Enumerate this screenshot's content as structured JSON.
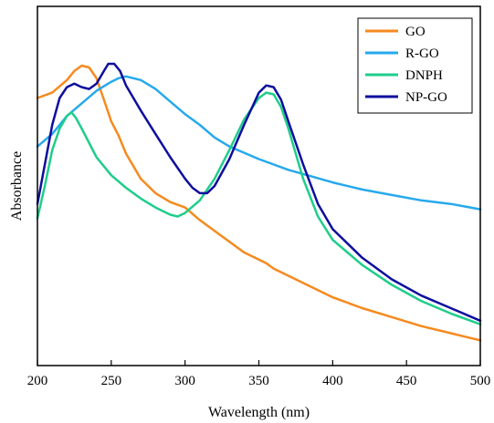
{
  "chart_data": {
    "type": "line",
    "title": "",
    "xlabel": "Wavelength (nm)",
    "ylabel": "Absorbance",
    "xlim": [
      200,
      500
    ],
    "ylim": [
      0,
      1.0
    ],
    "x_ticks": [
      200,
      250,
      300,
      350,
      400,
      450,
      500
    ],
    "x_tick_labels": [
      "200",
      "250",
      "300",
      "350",
      "400",
      "450",
      "500"
    ],
    "y_ticks_shown": false,
    "grid": false,
    "legend_position": "top-right",
    "series": [
      {
        "name": "GO",
        "color": "#f58a1f",
        "x": [
          200,
          210,
          220,
          225,
          230,
          235,
          240,
          245,
          250,
          255,
          260,
          270,
          280,
          290,
          300,
          310,
          320,
          330,
          340,
          350,
          355,
          360,
          370,
          380,
          390,
          400,
          420,
          440,
          460,
          480,
          500
        ],
        "y": [
          0.745,
          0.76,
          0.795,
          0.82,
          0.835,
          0.83,
          0.8,
          0.74,
          0.68,
          0.64,
          0.59,
          0.52,
          0.48,
          0.455,
          0.44,
          0.405,
          0.375,
          0.345,
          0.315,
          0.295,
          0.285,
          0.27,
          0.25,
          0.23,
          0.21,
          0.19,
          0.16,
          0.135,
          0.11,
          0.09,
          0.07
        ]
      },
      {
        "name": "R-GO",
        "color": "#27a9ec",
        "x": [
          200,
          210,
          220,
          230,
          240,
          250,
          255,
          260,
          265,
          270,
          280,
          290,
          300,
          310,
          320,
          330,
          350,
          370,
          400,
          420,
          440,
          460,
          480,
          500
        ],
        "y": [
          0.61,
          0.645,
          0.695,
          0.73,
          0.765,
          0.79,
          0.8,
          0.805,
          0.8,
          0.795,
          0.77,
          0.735,
          0.7,
          0.67,
          0.635,
          0.61,
          0.575,
          0.545,
          0.51,
          0.49,
          0.475,
          0.46,
          0.45,
          0.435
        ]
      },
      {
        "name": "DNPH",
        "color": "#1fcd8b",
        "x": [
          200,
          205,
          210,
          215,
          220,
          223,
          226,
          230,
          240,
          250,
          260,
          270,
          280,
          290,
          295,
          300,
          310,
          320,
          330,
          340,
          350,
          355,
          360,
          365,
          370,
          380,
          390,
          400,
          420,
          440,
          460,
          480,
          500
        ],
        "y": [
          0.41,
          0.5,
          0.6,
          0.66,
          0.695,
          0.705,
          0.69,
          0.66,
          0.58,
          0.53,
          0.495,
          0.465,
          0.44,
          0.42,
          0.415,
          0.425,
          0.46,
          0.52,
          0.6,
          0.685,
          0.745,
          0.76,
          0.755,
          0.72,
          0.66,
          0.52,
          0.415,
          0.35,
          0.28,
          0.225,
          0.18,
          0.145,
          0.115
        ]
      },
      {
        "name": "NP-GO",
        "color": "#0e0e9e",
        "x": [
          200,
          205,
          210,
          215,
          220,
          225,
          230,
          235,
          240,
          245,
          248,
          252,
          256,
          260,
          270,
          280,
          290,
          300,
          305,
          310,
          315,
          320,
          330,
          340,
          350,
          355,
          360,
          365,
          370,
          380,
          390,
          400,
          420,
          440,
          460,
          480,
          500
        ],
        "y": [
          0.45,
          0.56,
          0.67,
          0.745,
          0.775,
          0.785,
          0.775,
          0.77,
          0.785,
          0.82,
          0.84,
          0.84,
          0.82,
          0.78,
          0.71,
          0.645,
          0.58,
          0.52,
          0.495,
          0.48,
          0.48,
          0.5,
          0.575,
          0.67,
          0.76,
          0.78,
          0.775,
          0.74,
          0.68,
          0.56,
          0.45,
          0.38,
          0.3,
          0.24,
          0.195,
          0.16,
          0.125
        ]
      }
    ]
  }
}
